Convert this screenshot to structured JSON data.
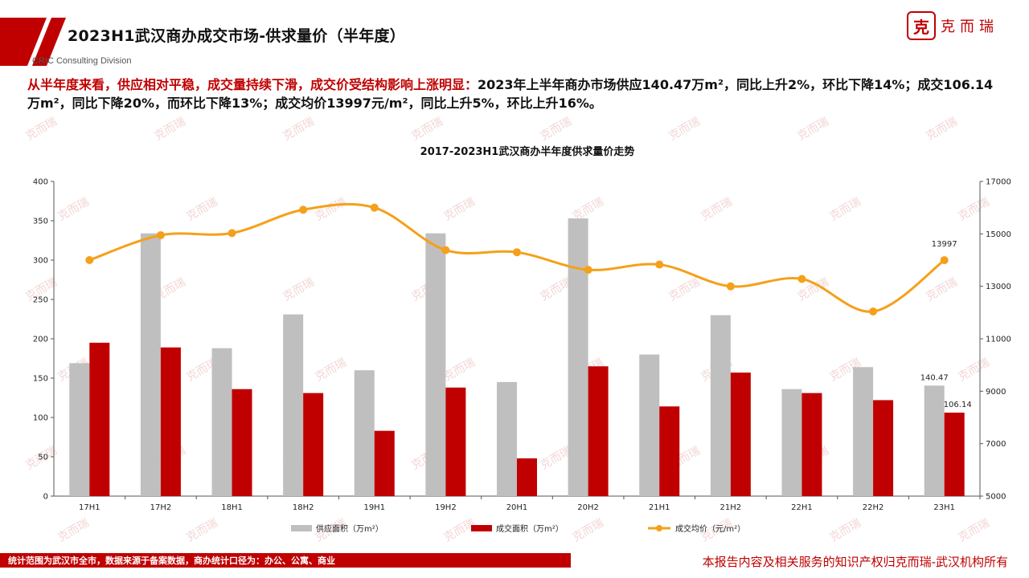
{
  "header": {
    "title": "2023H1武汉商办成交市场-供求量价（半年度）",
    "division": "CRIC Consulting Division",
    "logo_seal": "克",
    "logo_text": "克而瑞"
  },
  "summary": {
    "highlight": "从半年度来看，供应相对平稳，成交量持续下滑，成交价受结构影响上涨明显：",
    "body": "2023年上半年商办市场供应140.47万m²，同比上升2%，环比下降14%；成交106.14万m²，同比下降20%，而环比下降13%；成交均价13997元/m²，同比上升5%，环比上升16%。"
  },
  "watermark_text": "克而瑞",
  "colors": {
    "brand_red": "#c00000",
    "supply_gray": "#bfbfbf",
    "deal_red": "#c00000",
    "price_orange": "#f5a01a"
  },
  "chart_data": {
    "type": "bar",
    "title": "2017-2023H1武汉商办半年度供求量价走势",
    "categories": [
      "17H1",
      "17H2",
      "18H1",
      "18H2",
      "19H1",
      "19H2",
      "20H1",
      "20H2",
      "21H1",
      "21H2",
      "22H1",
      "22H2",
      "23H1"
    ],
    "series": [
      {
        "name": "供应面积（万m²）",
        "type": "bar",
        "axis": "left",
        "values": [
          169,
          334,
          188,
          231,
          160,
          334,
          145,
          353,
          180,
          230,
          136,
          164,
          140.47
        ]
      },
      {
        "name": "成交面积（万m²）",
        "type": "bar",
        "axis": "left",
        "values": [
          195,
          189,
          136,
          131,
          83,
          138,
          48,
          165,
          114,
          157,
          131,
          122,
          106.14
        ]
      },
      {
        "name": "成交均价（元/m²）",
        "type": "line",
        "axis": "right",
        "values": [
          14000,
          14950,
          15030,
          15920,
          16000,
          14380,
          14300,
          13630,
          13830,
          13000,
          13280,
          12040,
          13997
        ]
      }
    ],
    "y_left": {
      "min": 0,
      "max": 400,
      "ticks": [
        0,
        50,
        100,
        150,
        200,
        250,
        300,
        350,
        400
      ]
    },
    "y_right": {
      "min": 5000,
      "max": 17000,
      "ticks": [
        5000,
        7000,
        9000,
        11000,
        13000,
        15000,
        17000
      ]
    },
    "data_labels": {
      "supply_last": "140.47",
      "deal_last": "106.14",
      "price_last": "13997"
    },
    "legend_position": "bottom",
    "grid": false
  },
  "footer": {
    "left_note": "统计范围为武汉市全市，数据来源于备案数据，商办统计口径为：办公、公寓、商业",
    "right_note": "本报告内容及相关服务的知识产权归克而瑞-武汉机构所有"
  }
}
